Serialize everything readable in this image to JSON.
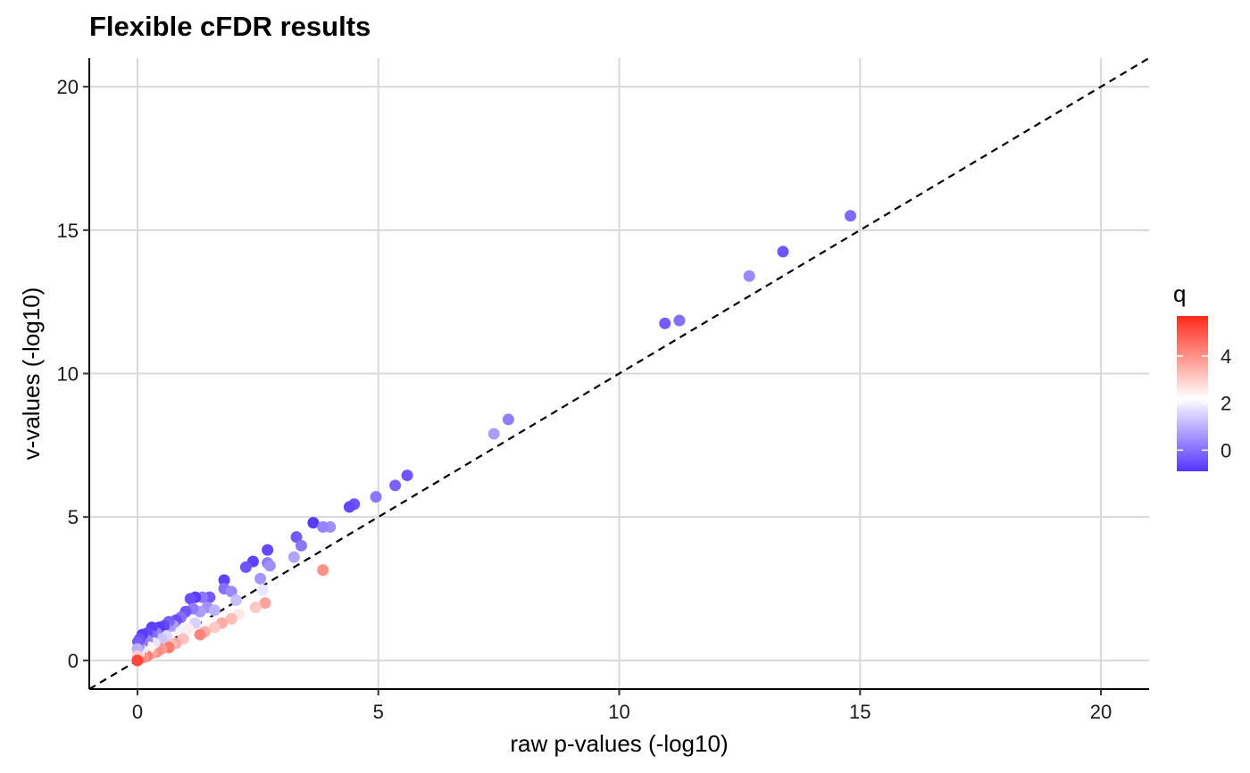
{
  "chart_data": {
    "type": "scatter",
    "title": "Flexible cFDR results",
    "xlabel": "raw p-values (-log10)",
    "ylabel": "v-values (-log10)",
    "xlim": [
      -1,
      21
    ],
    "ylim": [
      -1,
      21
    ],
    "x_ticks": [
      0,
      5,
      10,
      15,
      20
    ],
    "y_ticks": [
      0,
      5,
      10,
      15,
      20
    ],
    "grid": true,
    "reference_line": {
      "type": "y=x",
      "style": "dashed",
      "color": "#000000"
    },
    "color_scale": {
      "name": "q",
      "breaks": [
        0,
        2,
        4
      ],
      "range": [
        -0.9,
        5.7
      ],
      "low": "#5533ff",
      "mid": "#ffffff",
      "high": "#ff2a1a",
      "midpoint": 2.2
    },
    "legend_position": "right",
    "points": [
      {
        "x": 14.8,
        "y": 15.5,
        "q": -0.1
      },
      {
        "x": 13.4,
        "y": 14.25,
        "q": -0.4
      },
      {
        "x": 12.7,
        "y": 13.4,
        "q": 0.4
      },
      {
        "x": 11.25,
        "y": 11.85,
        "q": 0.0
      },
      {
        "x": 10.95,
        "y": 11.75,
        "q": -0.3
      },
      {
        "x": 7.7,
        "y": 8.4,
        "q": 0.2
      },
      {
        "x": 7.4,
        "y": 7.9,
        "q": 0.7
      },
      {
        "x": 5.6,
        "y": 6.45,
        "q": -0.4
      },
      {
        "x": 5.35,
        "y": 6.1,
        "q": -0.2
      },
      {
        "x": 4.95,
        "y": 5.7,
        "q": 0.1
      },
      {
        "x": 4.5,
        "y": 5.45,
        "q": -0.4
      },
      {
        "x": 4.4,
        "y": 5.35,
        "q": -0.6
      },
      {
        "x": 3.65,
        "y": 4.8,
        "q": -0.8
      },
      {
        "x": 4.0,
        "y": 4.65,
        "q": 0.5
      },
      {
        "x": 3.85,
        "y": 4.65,
        "q": 0.3
      },
      {
        "x": 3.3,
        "y": 4.3,
        "q": -0.3
      },
      {
        "x": 3.4,
        "y": 4.0,
        "q": 0.1
      },
      {
        "x": 3.25,
        "y": 3.6,
        "q": 0.8
      },
      {
        "x": 3.85,
        "y": 3.15,
        "q": 4.0
      },
      {
        "x": 2.7,
        "y": 3.85,
        "q": -0.6
      },
      {
        "x": 2.4,
        "y": 3.45,
        "q": -0.7
      },
      {
        "x": 2.25,
        "y": 3.25,
        "q": -0.4
      },
      {
        "x": 2.7,
        "y": 3.4,
        "q": 0.2
      },
      {
        "x": 2.75,
        "y": 3.3,
        "q": 0.5
      },
      {
        "x": 2.55,
        "y": 2.85,
        "q": 0.6
      },
      {
        "x": 2.6,
        "y": 2.45,
        "q": 1.8
      },
      {
        "x": 2.65,
        "y": 2.0,
        "q": 3.7
      },
      {
        "x": 2.45,
        "y": 1.85,
        "q": 3.1
      },
      {
        "x": 1.8,
        "y": 2.8,
        "q": -0.7
      },
      {
        "x": 1.8,
        "y": 2.5,
        "q": 0.0
      },
      {
        "x": 1.95,
        "y": 2.4,
        "q": 0.4
      },
      {
        "x": 2.05,
        "y": 2.1,
        "q": 1.2
      },
      {
        "x": 2.1,
        "y": 1.6,
        "q": 2.6
      },
      {
        "x": 1.95,
        "y": 1.45,
        "q": 3.3
      },
      {
        "x": 1.75,
        "y": 1.3,
        "q": 3.6
      },
      {
        "x": 1.5,
        "y": 2.2,
        "q": -0.3
      },
      {
        "x": 1.35,
        "y": 2.2,
        "q": 0.1
      },
      {
        "x": 1.2,
        "y": 2.2,
        "q": -0.8
      },
      {
        "x": 1.1,
        "y": 2.15,
        "q": -0.5
      },
      {
        "x": 1.45,
        "y": 1.85,
        "q": 0.5
      },
      {
        "x": 1.6,
        "y": 1.75,
        "q": 1.0
      },
      {
        "x": 1.3,
        "y": 1.7,
        "q": 0.7
      },
      {
        "x": 1.15,
        "y": 1.8,
        "q": 0.2
      },
      {
        "x": 1.0,
        "y": 1.7,
        "q": -0.4
      },
      {
        "x": 1.45,
        "y": 1.35,
        "q": 2.2
      },
      {
        "x": 1.6,
        "y": 1.15,
        "q": 3.1
      },
      {
        "x": 1.4,
        "y": 1.0,
        "q": 3.5
      },
      {
        "x": 1.3,
        "y": 0.9,
        "q": 4.2
      },
      {
        "x": 1.2,
        "y": 1.3,
        "q": 1.5
      },
      {
        "x": 1.05,
        "y": 1.1,
        "q": 2.5
      },
      {
        "x": 0.9,
        "y": 1.5,
        "q": 0.0
      },
      {
        "x": 0.8,
        "y": 1.4,
        "q": -0.5
      },
      {
        "x": 0.75,
        "y": 1.2,
        "q": 0.7
      },
      {
        "x": 0.9,
        "y": 1.0,
        "q": 2.0
      },
      {
        "x": 0.95,
        "y": 0.75,
        "q": 3.2
      },
      {
        "x": 0.8,
        "y": 0.6,
        "q": 3.6
      },
      {
        "x": 0.65,
        "y": 1.35,
        "q": -0.2
      },
      {
        "x": 0.6,
        "y": 1.1,
        "q": 0.6
      },
      {
        "x": 0.55,
        "y": 1.2,
        "q": -0.6
      },
      {
        "x": 0.6,
        "y": 0.85,
        "q": 1.6
      },
      {
        "x": 0.7,
        "y": 0.55,
        "q": 3.3
      },
      {
        "x": 0.65,
        "y": 0.45,
        "q": 4.4
      },
      {
        "x": 0.45,
        "y": 1.15,
        "q": -0.8
      },
      {
        "x": 0.4,
        "y": 0.95,
        "q": 0.3
      },
      {
        "x": 0.5,
        "y": 0.75,
        "q": 1.3
      },
      {
        "x": 0.5,
        "y": 0.4,
        "q": 3.9
      },
      {
        "x": 0.4,
        "y": 0.3,
        "q": 4.1
      },
      {
        "x": 0.3,
        "y": 1.15,
        "q": -0.7
      },
      {
        "x": 0.3,
        "y": 0.85,
        "q": 0.0
      },
      {
        "x": 0.35,
        "y": 0.6,
        "q": 1.8
      },
      {
        "x": 0.3,
        "y": 0.25,
        "q": 3.7
      },
      {
        "x": 0.2,
        "y": 0.95,
        "q": -0.6
      },
      {
        "x": 0.2,
        "y": 0.7,
        "q": 0.4
      },
      {
        "x": 0.25,
        "y": 0.45,
        "q": 2.4
      },
      {
        "x": 0.2,
        "y": 0.15,
        "q": 4.3
      },
      {
        "x": 0.1,
        "y": 0.9,
        "q": -0.8
      },
      {
        "x": 0.1,
        "y": 0.6,
        "q": 0.2
      },
      {
        "x": 0.1,
        "y": 0.35,
        "q": 1.9
      },
      {
        "x": 0.12,
        "y": 0.1,
        "q": 4.0
      },
      {
        "x": 0.05,
        "y": 0.75,
        "q": -0.5
      },
      {
        "x": 0.03,
        "y": 0.5,
        "q": 0.5
      },
      {
        "x": 0.03,
        "y": 0.25,
        "q": 2.0
      },
      {
        "x": 0.02,
        "y": 0.05,
        "q": 4.5
      },
      {
        "x": 0.01,
        "y": 0.65,
        "q": -0.3
      },
      {
        "x": 0.0,
        "y": 0.4,
        "q": 1.0
      },
      {
        "x": 0.0,
        "y": 0.15,
        "q": 3.0
      },
      {
        "x": 0.0,
        "y": 0.0,
        "q": 5.2
      }
    ]
  }
}
